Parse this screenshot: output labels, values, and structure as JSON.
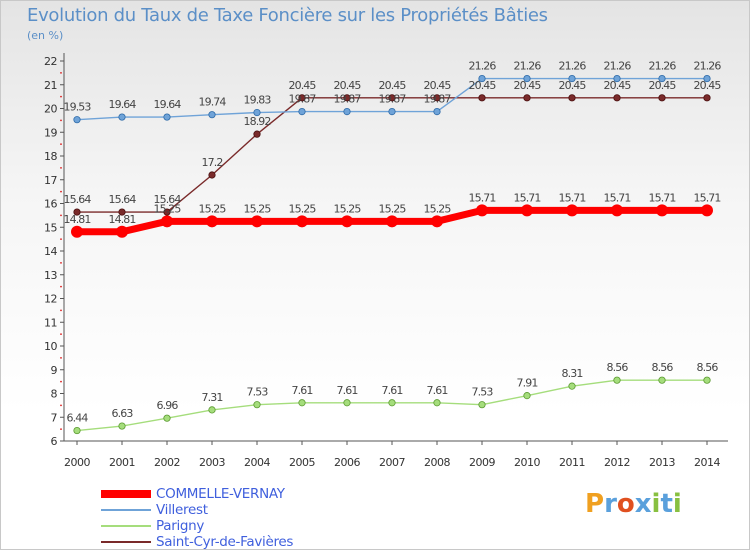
{
  "header": {
    "title": "Evolution du Taux de Taxe Foncière sur les Propriétés Bâties",
    "unit": "(en %)"
  },
  "logo": {
    "text": "Proxiti"
  },
  "chart_data": {
    "type": "line",
    "x": [
      "2000",
      "2001",
      "2002",
      "2003",
      "2004",
      "2005",
      "2006",
      "2007",
      "2008",
      "2009",
      "2010",
      "2011",
      "2012",
      "2013",
      "2014"
    ],
    "ylim": [
      6,
      22
    ],
    "yticks": [
      "6",
      "7",
      "8",
      "9",
      "10",
      "11",
      "12",
      "13",
      "14",
      "15",
      "16",
      "17",
      "18",
      "19",
      "20",
      "21",
      "22"
    ],
    "grid": false,
    "legend_position": "bottom-left",
    "series": [
      {
        "name": "COMMELLE-VERNAY",
        "color": "#ff0000",
        "values": [
          14.81,
          14.81,
          15.25,
          15.25,
          15.25,
          15.25,
          15.25,
          15.25,
          15.25,
          15.71,
          15.71,
          15.71,
          15.71,
          15.71,
          15.71
        ],
        "labels": [
          "14.81",
          "14.81",
          "15.25",
          "15.25",
          "15.25",
          "15.25",
          "15.25",
          "15.25",
          "15.25",
          "15.71",
          "15.71",
          "15.71",
          "15.71",
          "15.71",
          "15.71"
        ]
      },
      {
        "name": "Villerest",
        "color": "#6fa3d8",
        "values": [
          19.53,
          19.64,
          19.64,
          19.74,
          19.83,
          19.87,
          19.87,
          19.87,
          19.87,
          21.26,
          21.26,
          21.26,
          21.26,
          21.26,
          21.26
        ],
        "labels": [
          "19.53",
          "19.64",
          "19.64",
          "19.74",
          "19.83",
          "19.87",
          "19.87",
          "19.87",
          "19.87",
          "21.26",
          "21.26",
          "21.26",
          "21.26",
          "21.26",
          "21.26"
        ]
      },
      {
        "name": "Parigny",
        "color": "#a5dd7c",
        "values": [
          6.44,
          6.63,
          6.96,
          7.31,
          7.53,
          7.61,
          7.61,
          7.61,
          7.61,
          7.53,
          7.91,
          8.31,
          8.56,
          8.56,
          8.56
        ],
        "labels": [
          "6.44",
          "6.63",
          "6.96",
          "7.31",
          "7.53",
          "7.61",
          "7.61",
          "7.61",
          "7.61",
          "7.53",
          "7.91",
          "8.31",
          "8.56",
          "8.56",
          "8.56"
        ]
      },
      {
        "name": "Saint-Cyr-de-Favières",
        "color": "#7a2a2a",
        "values": [
          15.64,
          15.64,
          15.64,
          17.2,
          18.92,
          20.45,
          20.45,
          20.45,
          20.45,
          20.45,
          20.45,
          20.45,
          20.45,
          20.45,
          20.45
        ],
        "labels": [
          "15.64",
          "15.64",
          "15.64",
          "17.2",
          "18.92",
          "20.45",
          "20.45",
          "20.45",
          "20.45",
          "20.45",
          "20.45",
          "20.45",
          "20.45",
          "20.45",
          "20.45"
        ]
      }
    ]
  }
}
